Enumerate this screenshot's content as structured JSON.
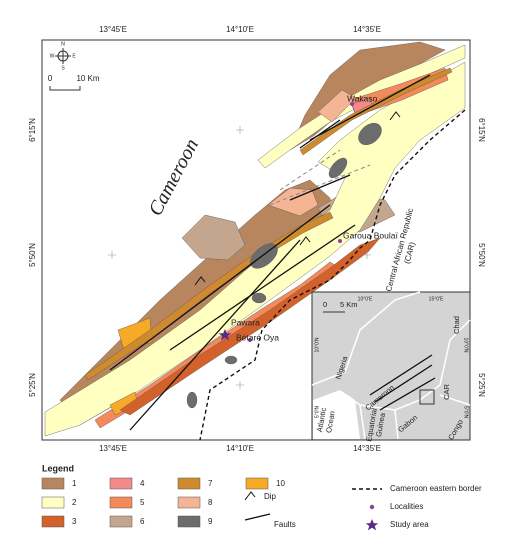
{
  "map": {
    "lon_labels": [
      "13°45'E",
      "14°10'E",
      "14°35'E"
    ],
    "lat_labels": [
      "6°15'N",
      "5°50'N",
      "5°25'N"
    ],
    "scale": {
      "start": "0",
      "end": "10 Km"
    },
    "compass": [
      "N",
      "S",
      "E",
      "W"
    ],
    "country": "Cameroon",
    "neighbor": [
      "Central African Republic",
      "(CAR)"
    ],
    "localities": [
      "Wakaso",
      "Garoua Boulaï",
      "Pawara",
      "Bétaré Oya"
    ]
  },
  "inset": {
    "lon_labels": [
      "10°0'E",
      "15°0'E"
    ],
    "lat_labels": [
      "10°0'N",
      "5°0'N"
    ],
    "scale": {
      "start": "0",
      "end": "5 Km"
    },
    "countries": [
      "Chad",
      "Nigeria",
      "Cameroon",
      "CAR",
      "Gabon",
      "Congo"
    ],
    "ocean": [
      "Atlantic",
      "Ocean"
    ],
    "guinea": [
      "Equatorial",
      "Guinea"
    ]
  },
  "legend": {
    "title": "Legend",
    "units": [
      {
        "label": "1",
        "color": "#b8865e"
      },
      {
        "label": "2",
        "color": "#ffffc2"
      },
      {
        "label": "3",
        "color": "#d2612c"
      },
      {
        "label": "4",
        "color": "#f28a8a"
      },
      {
        "label": "5",
        "color": "#f4895a"
      },
      {
        "label": "6",
        "color": "#c4a68e"
      },
      {
        "label": "7",
        "color": "#cf8a2e"
      },
      {
        "label": "8",
        "color": "#f5b494"
      },
      {
        "label": "9",
        "color": "#6c6c6c"
      },
      {
        "label": "10",
        "color": "#f7a928"
      }
    ],
    "symbols": [
      "Dip",
      "Faults",
      "Cameroon eastern border",
      "Localities",
      "Study area"
    ]
  }
}
